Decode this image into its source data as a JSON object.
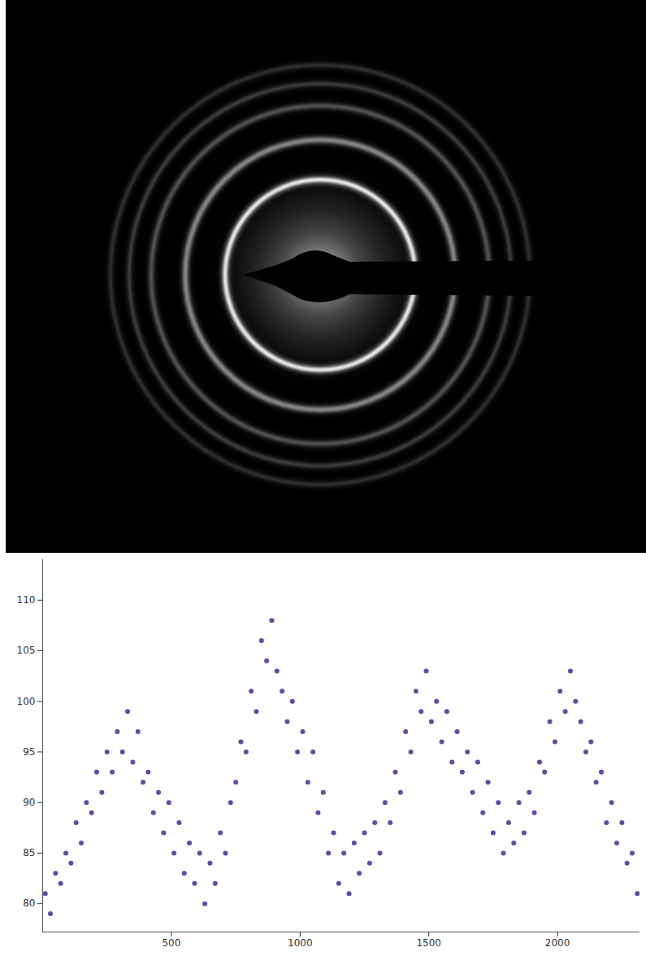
{
  "chart_data": {
    "type": "scatter",
    "color": "#3f3fa0",
    "marker": "circle",
    "x": [
      10,
      30,
      50,
      70,
      90,
      110,
      130,
      150,
      170,
      190,
      210,
      230,
      250,
      270,
      290,
      310,
      330,
      350,
      370,
      390,
      410,
      430,
      450,
      470,
      490,
      510,
      530,
      550,
      570,
      590,
      610,
      630,
      650,
      670,
      690,
      710,
      730,
      750,
      770,
      790,
      810,
      830,
      850,
      870,
      890,
      910,
      930,
      950,
      970,
      990,
      1010,
      1030,
      1050,
      1070,
      1090,
      1110,
      1130,
      1150,
      1170,
      1190,
      1210,
      1230,
      1250,
      1270,
      1290,
      1310,
      1330,
      1350,
      1370,
      1390,
      1410,
      1430,
      1450,
      1470,
      1490,
      1510,
      1530,
      1550,
      1570,
      1590,
      1610,
      1630,
      1650,
      1670,
      1690,
      1710,
      1730,
      1750,
      1770,
      1790,
      1810,
      1830,
      1850,
      1870,
      1890,
      1910,
      1930,
      1950,
      1970,
      1990,
      2010,
      2030,
      2050,
      2070,
      2090,
      2110,
      2130,
      2150,
      2170,
      2190,
      2210,
      2230,
      2250,
      2270,
      2290,
      2310
    ],
    "values": [
      81,
      79,
      83,
      82,
      85,
      84,
      88,
      86,
      90,
      89,
      93,
      91,
      95,
      93,
      97,
      95,
      99,
      94,
      97,
      92,
      93,
      89,
      91,
      87,
      90,
      85,
      88,
      83,
      86,
      82,
      85,
      80,
      84,
      82,
      87,
      85,
      90,
      92,
      96,
      95,
      101,
      99,
      106,
      104,
      108,
      103,
      101,
      98,
      100,
      95,
      97,
      92,
      95,
      89,
      91,
      85,
      87,
      82,
      85,
      81,
      86,
      83,
      87,
      84,
      88,
      85,
      90,
      88,
      93,
      91,
      97,
      95,
      101,
      99,
      103,
      98,
      100,
      96,
      99,
      94,
      97,
      93,
      95,
      91,
      94,
      89,
      92,
      87,
      90,
      85,
      88,
      86,
      90,
      87,
      91,
      89,
      94,
      93,
      98,
      96,
      101,
      99,
      103,
      100,
      98,
      95,
      96,
      92,
      93,
      88,
      90,
      86,
      88,
      84,
      85,
      81
    ],
    "xlim": [
      0,
      2320
    ],
    "ylim": [
      77.2,
      114
    ],
    "xticks": [
      500,
      1000,
      1500,
      2000
    ],
    "yticks": [
      80,
      85,
      90,
      95,
      100,
      105,
      110
    ]
  }
}
